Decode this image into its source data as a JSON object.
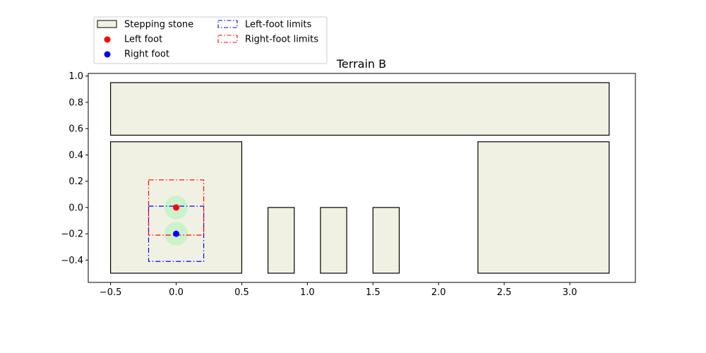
{
  "chart_data": {
    "type": "scatter",
    "title": "Terrain B",
    "xlabel": "",
    "ylabel": "",
    "xlim": [
      -0.67,
      3.5
    ],
    "ylim": [
      -0.57,
      1.02
    ],
    "xticks": [
      -0.5,
      0.0,
      0.5,
      1.0,
      1.5,
      2.0,
      2.5,
      3.0
    ],
    "xtick_labels": [
      "−0.5",
      "0.0",
      "0.5",
      "1.0",
      "1.5",
      "2.0",
      "2.5",
      "3.0"
    ],
    "yticks": [
      -0.4,
      -0.2,
      0.0,
      0.2,
      0.4,
      0.6,
      0.8,
      1.0
    ],
    "ytick_labels": [
      "−0.4",
      "−0.2",
      "0.0",
      "0.2",
      "0.4",
      "0.6",
      "0.8",
      "1.0"
    ],
    "grid": false,
    "legend_position": "upper-left-outside",
    "stones": [
      {
        "x0": -0.5,
        "x1": 3.3,
        "y0": 0.55,
        "y1": 0.95
      },
      {
        "x0": -0.5,
        "x1": 0.5,
        "y0": -0.5,
        "y1": 0.5
      },
      {
        "x0": 0.7,
        "x1": 0.9,
        "y0": -0.5,
        "y1": 0.0
      },
      {
        "x0": 1.1,
        "x1": 1.3,
        "y0": -0.5,
        "y1": 0.0
      },
      {
        "x0": 1.5,
        "x1": 1.7,
        "y0": -0.5,
        "y1": 0.0
      },
      {
        "x0": 2.3,
        "x1": 3.3,
        "y0": -0.5,
        "y1": 0.5
      }
    ],
    "feet": [
      {
        "name": "Left foot",
        "x": 0.0,
        "y": 0.0,
        "color": "#ff0000"
      },
      {
        "name": "Right foot",
        "x": 0.0,
        "y": -0.2,
        "color": "#0000ff"
      }
    ],
    "foot_regions": [
      {
        "x": 0.0,
        "y": 0.0,
        "radius": 0.09,
        "color": "#ccf2cc"
      },
      {
        "x": 0.0,
        "y": -0.2,
        "radius": 0.09,
        "color": "#ccf2cc"
      }
    ],
    "limits": [
      {
        "name": "Left-foot limits",
        "x0": -0.21,
        "x1": 0.21,
        "y0": -0.41,
        "y1": 0.01,
        "color": "#0000ff"
      },
      {
        "name": "Right-foot limits",
        "x0": -0.21,
        "x1": 0.21,
        "y0": -0.21,
        "y1": 0.21,
        "color": "#ff0000"
      }
    ],
    "legend": [
      {
        "label": "Stepping stone",
        "kind": "patch",
        "fill": "#f1f1e3",
        "stroke": "#000000"
      },
      {
        "label": "Left foot",
        "kind": "marker",
        "color": "#ff0000"
      },
      {
        "label": "Right foot",
        "kind": "marker",
        "color": "#0000ff"
      },
      {
        "label": "Left-foot limits",
        "kind": "dashpatch",
        "color": "#0000ff"
      },
      {
        "label": "Right-foot limits",
        "kind": "dashpatch",
        "color": "#ff0000"
      }
    ],
    "stone_fill": "#f1f1e3",
    "stone_stroke": "#000000"
  }
}
